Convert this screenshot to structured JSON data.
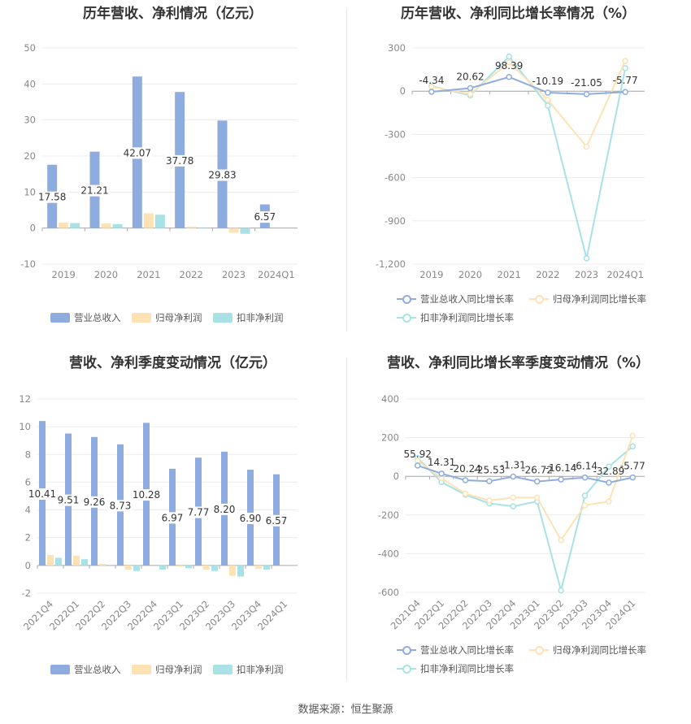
{
  "source": "数据来源：恒生聚源",
  "colors": {
    "revenue": "#8eadde",
    "net": "#fde2b4",
    "deducted": "#a8e2e6"
  },
  "legend_bar": [
    "营业总收入",
    "归母净利润",
    "扣非净利润"
  ],
  "legend_line": [
    "营业总收入同比增长率",
    "归母净利润同比增长率",
    "扣非净利润同比增长率"
  ],
  "chart_data": [
    {
      "type": "bar",
      "title": "历年营收、净利情况（亿元）",
      "categories": [
        "2019",
        "2020",
        "2021",
        "2022",
        "2023",
        "2024Q1"
      ],
      "ylim": [
        -10,
        50
      ],
      "yticks": [
        -10,
        0,
        10,
        20,
        30,
        40,
        50
      ],
      "series": [
        {
          "name": "营业总收入",
          "values": [
            17.58,
            21.21,
            42.07,
            37.78,
            29.83,
            6.57
          ]
        },
        {
          "name": "归母净利润",
          "values": [
            1.5,
            1.3,
            4.1,
            0.4,
            -1.3,
            0
          ]
        },
        {
          "name": "扣非净利润",
          "values": [
            1.4,
            1.1,
            3.7,
            0.1,
            -1.6,
            0
          ]
        }
      ],
      "data_labels": [
        "17.58",
        "21.21",
        "42.07",
        "37.78",
        "29.83",
        "6.57"
      ],
      "legend": "bottom"
    },
    {
      "type": "line",
      "title": "历年营收、净利同比增长率情况（%）",
      "categories": [
        "2019",
        "2020",
        "2021",
        "2022",
        "2023",
        "2024Q1"
      ],
      "ylim": [
        -1200,
        300
      ],
      "yticks": [
        -1200,
        -900,
        -600,
        -300,
        0,
        300
      ],
      "ytick_labels": [
        "-1,200",
        "-900",
        "-600",
        "-300",
        "0",
        "300"
      ],
      "series": [
        {
          "name": "营业总收入同比增长率",
          "values": [
            -4.34,
            20.62,
            98.39,
            -10.19,
            -21.05,
            -5.77
          ]
        },
        {
          "name": "归母净利润同比增长率",
          "values": [
            30,
            -20,
            200,
            -60,
            -385,
            210
          ]
        },
        {
          "name": "扣非净利润同比增长率",
          "values": [
            35,
            -30,
            240,
            -100,
            -1160,
            160
          ]
        }
      ],
      "data_labels": [
        "-4.34",
        "20.62",
        "98.39",
        "-10.19",
        "-21.05",
        "-5.77"
      ],
      "legend": "bottom"
    },
    {
      "type": "bar",
      "title": "营收、净利季度变动情况（亿元）",
      "categories": [
        "2021Q4",
        "2022Q1",
        "2022Q2",
        "2022Q3",
        "2022Q4",
        "2023Q1",
        "2023Q2",
        "2023Q3",
        "2023Q4",
        "2024Q1"
      ],
      "ylim": [
        -2,
        12
      ],
      "yticks": [
        -2,
        0,
        2,
        4,
        6,
        8,
        10,
        12
      ],
      "series": [
        {
          "name": "营业总收入",
          "values": [
            10.41,
            9.51,
            9.26,
            8.73,
            10.28,
            6.97,
            7.77,
            8.2,
            6.9,
            6.57
          ]
        },
        {
          "name": "归母净利润",
          "values": [
            0.75,
            0.7,
            0.1,
            -0.3,
            0,
            -0.1,
            -0.3,
            -0.75,
            -0.25,
            0
          ]
        },
        {
          "name": "扣非净利润",
          "values": [
            0.55,
            0.45,
            0.05,
            -0.4,
            -0.3,
            -0.2,
            -0.4,
            -0.8,
            -0.3,
            0.05
          ]
        }
      ],
      "data_labels": [
        "10.41",
        "9.51",
        "9.26",
        "8.73",
        "10.28",
        "6.97",
        "7.77",
        "8.20",
        "6.90",
        "6.57"
      ],
      "legend": "bottom"
    },
    {
      "type": "line",
      "title": "营收、净利同比增长率季度变动情况（%）",
      "categories": [
        "2021Q4",
        "2022Q1",
        "2022Q2",
        "2022Q3",
        "2022Q4",
        "2023Q1",
        "2023Q2",
        "2023Q3",
        "2023Q4",
        "2024Q1"
      ],
      "ylim": [
        -600,
        400
      ],
      "yticks": [
        -600,
        -400,
        -200,
        0,
        200,
        400
      ],
      "series": [
        {
          "name": "营业总收入同比增长率",
          "values": [
            55.92,
            14.31,
            -20.24,
            -25.53,
            -1.31,
            -26.72,
            -16.14,
            -6.14,
            -32.89,
            -5.77
          ]
        },
        {
          "name": "归母净利润同比增长率",
          "values": [
            80,
            -10,
            -90,
            -125,
            -110,
            -110,
            -330,
            -150,
            -130,
            210
          ]
        },
        {
          "name": "扣非净利润同比增长率",
          "values": [
            95,
            -30,
            -95,
            -140,
            -155,
            -130,
            -590,
            -100,
            50,
            155
          ]
        }
      ],
      "data_labels": [
        "55.92",
        "14.31",
        "-20.24",
        "-25.53",
        "-1.31",
        "-26.72",
        "-16.14",
        "-6.14",
        "-32.89",
        "-5.77"
      ],
      "legend": "bottom"
    }
  ]
}
